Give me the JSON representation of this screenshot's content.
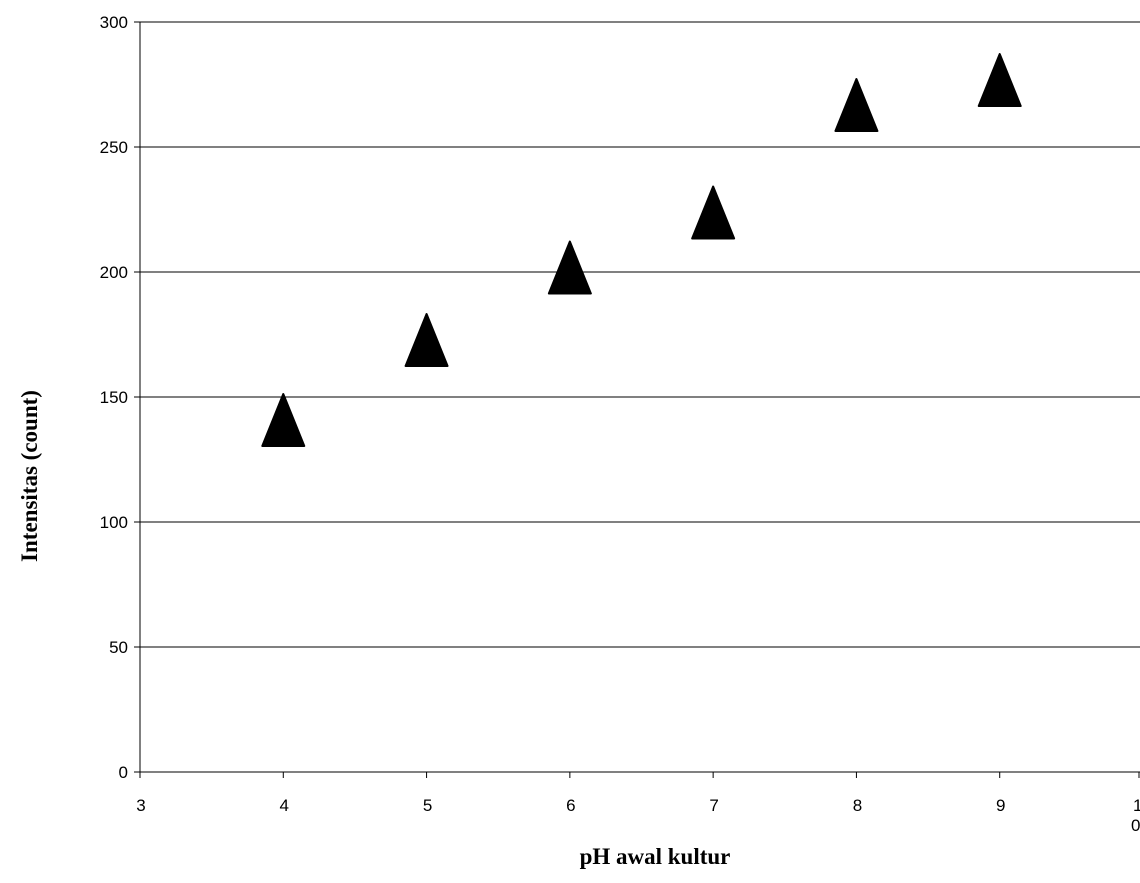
{
  "chart_data": {
    "type": "scatter",
    "title": "",
    "xlabel": "pH awal kultur",
    "ylabel": "Intensitas (count)",
    "xlim": [
      3,
      10
    ],
    "ylim": [
      0,
      300
    ],
    "x_ticks": [
      "3",
      "4",
      "5",
      "6",
      "7",
      "8",
      "9"
    ],
    "x_tick_last": {
      "line1": "1",
      "line2": "0"
    },
    "y_ticks": [
      "0",
      "50",
      "100",
      "150",
      "200",
      "250",
      "300"
    ],
    "grid": "horizontal",
    "legend": "none",
    "marker": "triangle",
    "marker_color": "#000000",
    "series": [
      {
        "x": [
          4,
          5,
          6,
          7,
          8,
          9
        ],
        "y": [
          138,
          170,
          199,
          221,
          264,
          274
        ]
      }
    ]
  }
}
